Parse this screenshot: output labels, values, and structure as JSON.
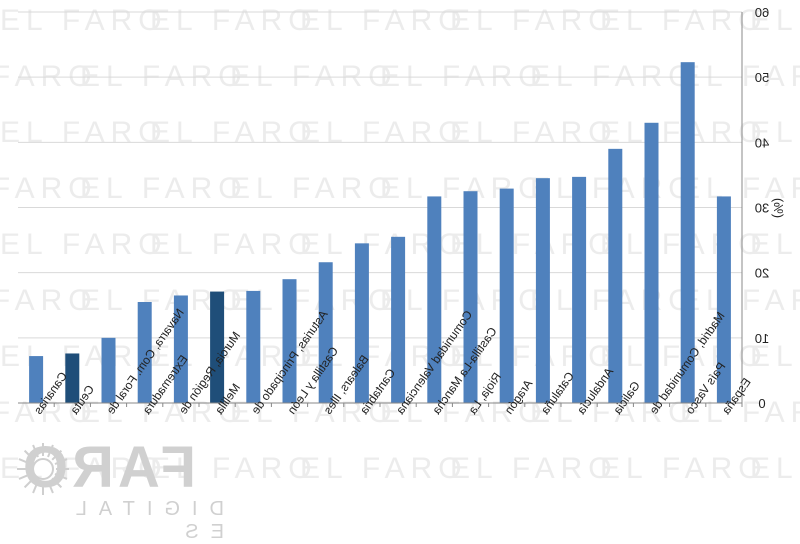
{
  "chart_data": {
    "type": "bar",
    "title": "",
    "xlabel": "",
    "ylabel": "(%)",
    "ylim": [
      0,
      60
    ],
    "yticks": [
      0,
      10,
      20,
      30,
      40,
      50,
      60
    ],
    "grid": true,
    "orientation": "mirrored (categories right-to-left, y-axis on right)",
    "categories": [
      "Canarias",
      "Ceuta",
      "Navarra, Com. Foral de",
      "Extremadura",
      "Murcia, Región de",
      "Melilla",
      "Asturias, Principado de",
      "Castilla y León",
      "Balears, Illes",
      "Cantabria",
      "Comunidad Valenciana",
      "Castilla-La Mancha",
      "Rioja, La",
      "Aragón",
      "Cataluña",
      "Andalucía",
      "Galicia",
      "Madrid, Comunidad de",
      "País Vasco",
      "España"
    ],
    "values": [
      7.2,
      7.6,
      10.0,
      15.5,
      16.5,
      17.1,
      17.2,
      19.0,
      21.6,
      24.5,
      25.5,
      31.7,
      32.5,
      32.9,
      34.5,
      34.7,
      39.0,
      43.0,
      52.3,
      31.7
    ],
    "highlighted": [
      "Ceuta",
      "Melilla"
    ],
    "colors": {
      "bar": "#4f81bd",
      "highlight": "#1f4e79",
      "grid": "#d9d9d9",
      "axis": "#888888"
    }
  },
  "brand": {
    "name": "FARO",
    "subtitle": "DIGITAL ES",
    "watermark": "EL FARO"
  }
}
